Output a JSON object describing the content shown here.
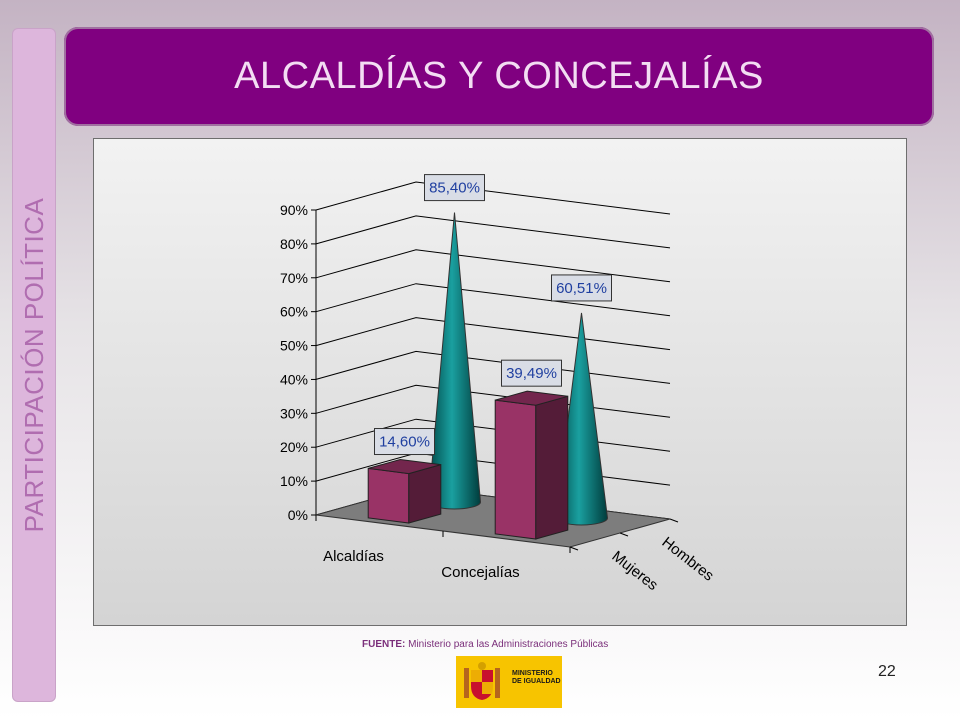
{
  "sidebar": {
    "label": "PARTICIPACIÓN POLÍTICA"
  },
  "header": {
    "title": "ALCALDÍAS Y CONCEJALÍAS"
  },
  "source": {
    "label": "FUENTE:",
    "text": "Ministerio para las Administraciones Públicas"
  },
  "logo": {
    "text": "MINISTERIO\nDE IGUALDAD"
  },
  "page_number": "22",
  "colors": {
    "mujeres": "#993366",
    "hombres": "#008080",
    "accent": "#800080",
    "label_text": "#1f3fa0"
  },
  "chart_data": {
    "type": "bar",
    "categories": [
      "Alcaldías",
      "Concejalías"
    ],
    "series": [
      {
        "name": "Mujeres",
        "values": [
          14.6,
          39.49
        ],
        "labels": [
          "14,60%",
          "39,49%"
        ]
      },
      {
        "name": "Hombres",
        "values": [
          85.4,
          60.51
        ],
        "labels": [
          "85,40%",
          "60,51%"
        ]
      }
    ],
    "shapes": [
      [
        "box",
        "box"
      ],
      [
        "cone",
        "cone"
      ]
    ],
    "yticks": [
      "0%",
      "10%",
      "20%",
      "30%",
      "40%",
      "50%",
      "60%",
      "70%",
      "80%",
      "90%"
    ],
    "ylim": [
      0,
      90
    ],
    "grid": true,
    "legend": "depth axis (3D)"
  }
}
